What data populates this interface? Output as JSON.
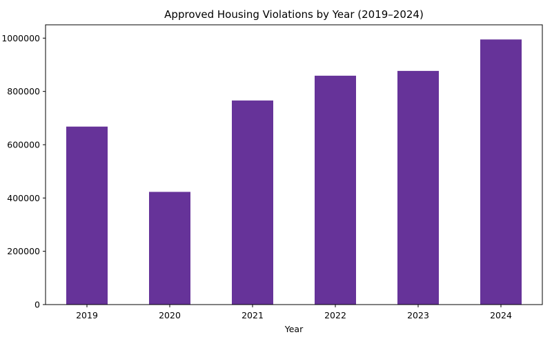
{
  "chart_data": {
    "type": "bar",
    "title": "Approved Housing Violations by Year (2019–2024)",
    "xlabel": "Year",
    "ylabel": "",
    "categories": [
      "2019",
      "2020",
      "2021",
      "2022",
      "2023",
      "2024"
    ],
    "values": [
      668000,
      423000,
      766000,
      859000,
      877000,
      995000
    ],
    "ylim": [
      0,
      1050000
    ],
    "yticks": [
      0,
      200000,
      400000,
      600000,
      800000,
      1000000
    ],
    "ytick_labels": [
      "0",
      "200000",
      "400000",
      "600000",
      "800000",
      "1000000"
    ],
    "bar_color": "#663399",
    "grid": false,
    "legend": "none"
  }
}
